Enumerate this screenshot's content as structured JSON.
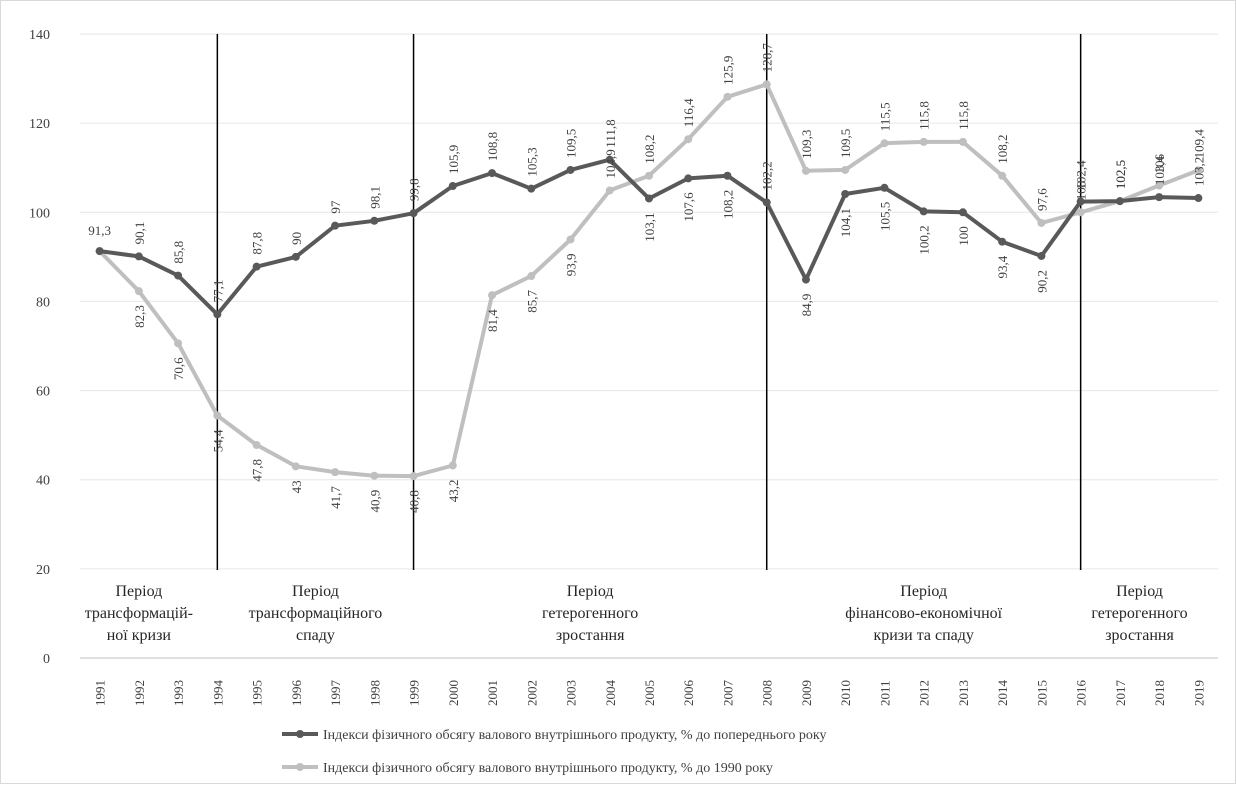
{
  "chart_data": {
    "type": "line",
    "x": [
      "1991",
      "1992",
      "1993",
      "1994",
      "1995",
      "1996",
      "1997",
      "1998",
      "1999",
      "2000",
      "2001",
      "2002",
      "2003",
      "2004",
      "2005",
      "2006",
      "2007",
      "2008",
      "2009",
      "2010",
      "2011",
      "2012",
      "2013",
      "2014",
      "2015",
      "2016",
      "2017",
      "2018",
      "2019"
    ],
    "ylim": [
      0,
      140
    ],
    "yticks": [
      0,
      20,
      40,
      60,
      80,
      100,
      120,
      140
    ],
    "grid": true,
    "legend_position": "bottom",
    "series": [
      {
        "name": "Індекси фізичного обсягу валового внутрішнього продукту, % до попереднього року",
        "color": "#595959",
        "values": [
          91.3,
          90.1,
          85.8,
          77.1,
          87.8,
          90,
          97,
          98.1,
          99.8,
          105.9,
          108.8,
          105.3,
          109.5,
          111.8,
          103.1,
          107.6,
          108.2,
          102.2,
          84.9,
          104.1,
          105.5,
          100.2,
          100,
          93.4,
          90.2,
          102.4,
          102.5,
          103.4,
          103.2
        ],
        "labels": [
          "91,3",
          "90,1",
          "85,8",
          "77,1",
          "87,8",
          "90",
          "97",
          "98,1",
          "99,8",
          "105,9",
          "108,8",
          "105,3",
          "109,5",
          "111,8",
          "103,1",
          "107,6",
          "108,2",
          "102,2",
          "84,9",
          "104,1",
          "105,5",
          "100,2",
          "100",
          "93,4",
          "90,2",
          "102,4",
          "102,5",
          "103,4",
          "103,2"
        ]
      },
      {
        "name": "Індекси фізичного обсягу валового внутрішнього продукту, % до 1990 року",
        "color": "#bfbfbf",
        "values": [
          91.3,
          82.3,
          70.6,
          54.4,
          47.8,
          43,
          41.7,
          40.9,
          40.8,
          43.2,
          81.4,
          85.7,
          93.9,
          104.9,
          108.2,
          116.4,
          125.9,
          128.7,
          109.3,
          109.5,
          115.5,
          115.8,
          115.8,
          108.2,
          97.6,
          100,
          102.5,
          106,
          109.4
        ],
        "labels": [
          "",
          "82,3",
          "70,6",
          "54,4",
          "47,8",
          "43",
          "41,7",
          "40,9",
          "40,8",
          "43,2",
          "81,4",
          "85,7",
          "93,9",
          "104,9",
          "108,2",
          "116,4",
          "125,9",
          "128,7",
          "109,3",
          "109,5",
          "115,5",
          "115,8",
          "115,8",
          "108,2",
          "97,6",
          "100",
          "102,5",
          "106",
          "109,4"
        ]
      }
    ],
    "period_dividers": [
      "1994",
      "1999",
      "2008",
      "2016"
    ],
    "periods": [
      {
        "lines": [
          "Період",
          "трансформацій-",
          "ної кризи"
        ],
        "center": "1992"
      },
      {
        "lines": [
          "Період",
          "трансформаційного",
          "спаду"
        ],
        "center": "1996.5"
      },
      {
        "lines": [
          "Період",
          "гетерогенного",
          "зростання"
        ],
        "center": "2003.5"
      },
      {
        "lines": [
          "Період",
          "фінансово-економічної",
          "кризи та спаду"
        ],
        "center": "2012"
      },
      {
        "lines": [
          "Період",
          "гетерогенного",
          "зростання"
        ],
        "center": "2017.5"
      }
    ]
  }
}
